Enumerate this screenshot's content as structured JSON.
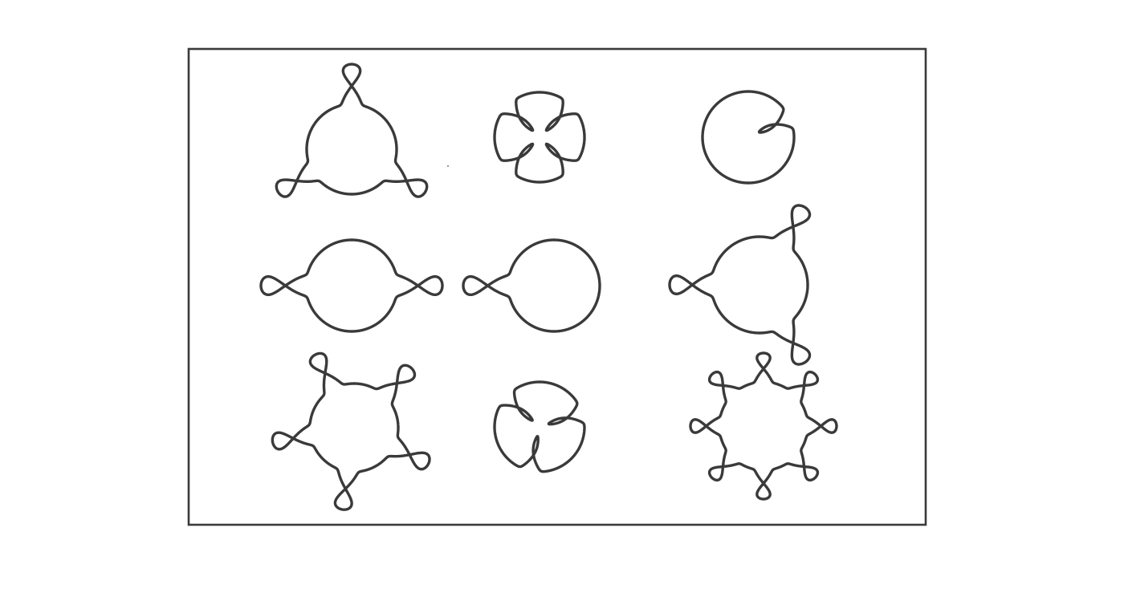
{
  "figure": {
    "stroke_color": "#3a3a3a",
    "background_color": "#ffffff",
    "curves": [
      {
        "name": "curve-three-outer-loops",
        "outer_loops": 3,
        "inner_loops": 0
      },
      {
        "name": "curve-four-inner-loops",
        "outer_loops": 0,
        "inner_loops": 4
      },
      {
        "name": "curve-one-inner-loop",
        "outer_loops": 0,
        "inner_loops": 1
      },
      {
        "name": "curve-two-outer-loops",
        "outer_loops": 2,
        "inner_loops": 0
      },
      {
        "name": "curve-one-outer-loop",
        "outer_loops": 1,
        "inner_loops": 0
      },
      {
        "name": "curve-three-outer-loops-rotated",
        "outer_loops": 3,
        "inner_loops": 0
      },
      {
        "name": "curve-five-outer-loops",
        "outer_loops": 5,
        "inner_loops": 0
      },
      {
        "name": "curve-three-inner-loops",
        "outer_loops": 0,
        "inner_loops": 3
      },
      {
        "name": "curve-eight-outer-loops",
        "outer_loops": 8,
        "inner_loops": 0
      }
    ]
  }
}
